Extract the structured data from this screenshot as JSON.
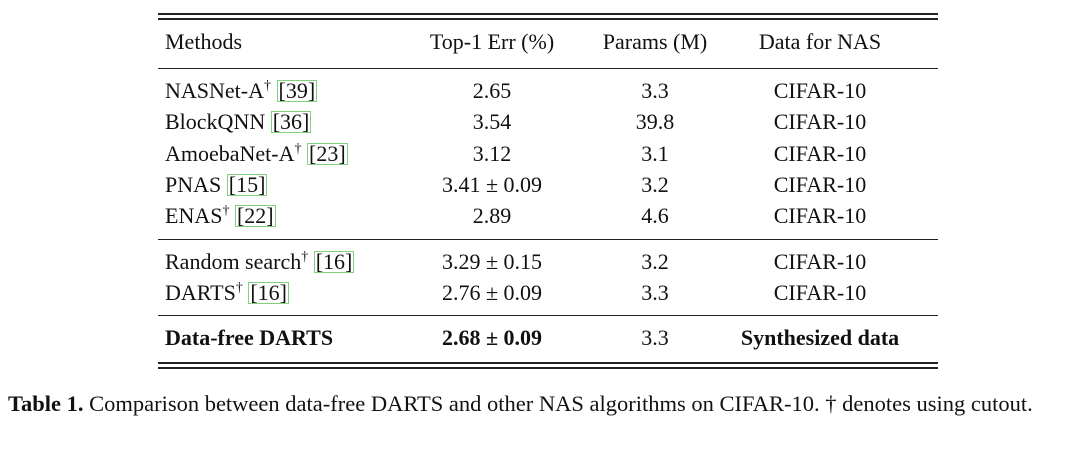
{
  "table": {
    "header": [
      "Methods",
      "Top-1 Err (%)",
      "Params (M)",
      "Data for NAS"
    ],
    "groups": [
      [
        {
          "method": "NASNet-A",
          "dagger": "†",
          "cite": "[39]",
          "err": "2.65",
          "params": "3.3",
          "data": "CIFAR-10"
        },
        {
          "method": "BlockQNN",
          "cite": "[36]",
          "err": "3.54",
          "params": "39.8",
          "data": "CIFAR-10"
        },
        {
          "method": "AmoebaNet-A",
          "dagger": "†",
          "cite": "[23]",
          "err": "3.12",
          "params": "3.1",
          "data": "CIFAR-10"
        },
        {
          "method": "PNAS",
          "cite": "[15]",
          "err": "3.41 ± 0.09",
          "params": "3.2",
          "data": "CIFAR-10"
        },
        {
          "method": "ENAS",
          "dagger": "†",
          "cite": "[22]",
          "err": "2.89",
          "params": "4.6",
          "data": "CIFAR-10"
        }
      ],
      [
        {
          "method": "Random search",
          "dagger": "†",
          "cite": "[16]",
          "err": "3.29 ± 0.15",
          "params": "3.2",
          "data": "CIFAR-10"
        },
        {
          "method": "DARTS",
          "dagger": "†",
          "cite": "[16]",
          "err": "2.76 ± 0.09",
          "params": "3.3",
          "data": "CIFAR-10"
        }
      ],
      [
        {
          "method": "Data-free DARTS",
          "err": "2.68 ± 0.09",
          "params": "3.3",
          "data": "Synthesized data"
        }
      ]
    ]
  },
  "caption": {
    "label": "Table 1.",
    "text": "Comparison between data-free DARTS and other NAS algorithms on CIFAR-10. † denotes using cutout."
  }
}
